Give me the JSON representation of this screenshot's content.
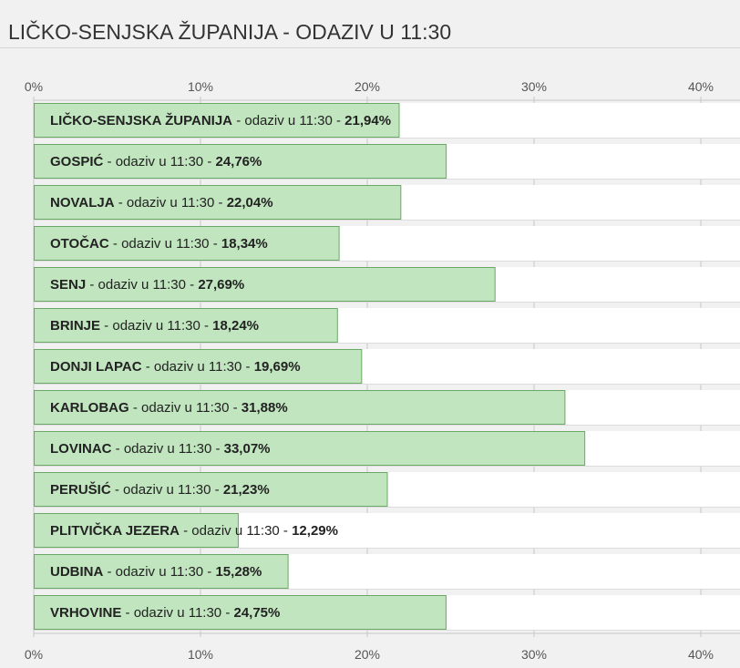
{
  "title": "LIČKO-SENJSKA ŽUPANIJA - ODAZIV U 11:30",
  "chart_data": {
    "type": "bar",
    "orientation": "horizontal",
    "title": "LIČKO-SENJSKA ŽUPANIJA - ODAZIV U 11:30",
    "xlabel": "",
    "ylabel": "",
    "xlim": [
      0,
      42
    ],
    "x_ticks": [
      0,
      10,
      20,
      30,
      40
    ],
    "x_tick_labels": [
      "0%",
      "10%",
      "20%",
      "30%",
      "40%"
    ],
    "grid": true,
    "label_middle": "odaziv u 11:30",
    "categories": [
      "LIČKO-SENJSKA ŽUPANIJA",
      "GOSPIĆ",
      "NOVALJA",
      "OTOČAC",
      "SENJ",
      "BRINJE",
      "DONJI LAPAC",
      "KARLOBAG",
      "LOVINAC",
      "PERUŠIĆ",
      "PLITVIČKA JEZERA",
      "UDBINA",
      "VRHOVINE"
    ],
    "values": [
      21.94,
      24.76,
      22.04,
      18.34,
      27.69,
      18.24,
      19.69,
      31.88,
      33.07,
      21.23,
      12.29,
      15.28,
      24.75
    ],
    "value_labels": [
      "21,94%",
      "24,76%",
      "22,04%",
      "18,34%",
      "27,69%",
      "18,24%",
      "19,69%",
      "31,88%",
      "33,07%",
      "21,23%",
      "12,29%",
      "15,28%",
      "24,75%"
    ],
    "colors": {
      "bar": "#c1e6bf",
      "bar_stroke": "#6aa865",
      "track": "#ffffff",
      "axis": "#c8c8c8",
      "background": "#f1f1f1"
    }
  }
}
